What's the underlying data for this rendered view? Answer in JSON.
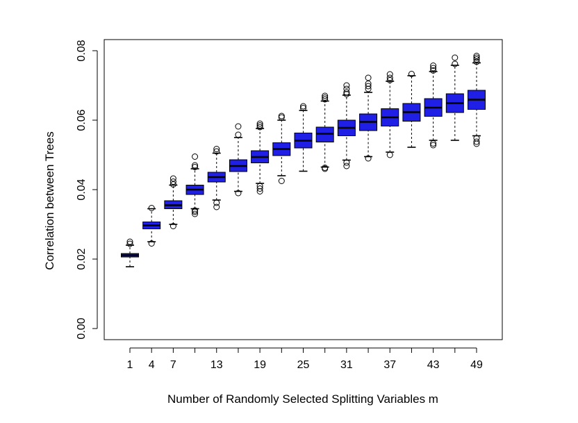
{
  "chart_data": {
    "type": "boxplot",
    "xlabel": "Number of Randomly Selected Splitting Variables m",
    "ylabel": "Correlation between Trees",
    "ylim": [
      0.0,
      0.08
    ],
    "yticks": [
      "0.00",
      "0.02",
      "0.04",
      "0.06",
      "0.08"
    ],
    "xticks": [
      "1",
      "4",
      "7",
      "13",
      "19",
      "25",
      "31",
      "37",
      "43",
      "49"
    ],
    "box_color": "#1f1fe6",
    "grid": false,
    "boxes": [
      {
        "m": 1,
        "whisker_low": 0.0178,
        "q1": 0.0206,
        "median": 0.0211,
        "q3": 0.0216,
        "whisker_high": 0.024,
        "outliers": [
          0.0244,
          0.025
        ]
      },
      {
        "m": 4,
        "whisker_low": 0.025,
        "q1": 0.0287,
        "median": 0.0297,
        "q3": 0.0307,
        "whisker_high": 0.0345,
        "outliers": [
          0.0245,
          0.0347
        ]
      },
      {
        "m": 7,
        "whisker_low": 0.03,
        "q1": 0.0345,
        "median": 0.0355,
        "q3": 0.0368,
        "whisker_high": 0.0413,
        "outliers": [
          0.0295,
          0.0415,
          0.0423,
          0.0432
        ]
      },
      {
        "m": 10,
        "whisker_low": 0.0345,
        "q1": 0.0386,
        "median": 0.04,
        "q3": 0.0413,
        "whisker_high": 0.046,
        "outliers": [
          0.033,
          0.0336,
          0.034,
          0.0465,
          0.047,
          0.0495
        ]
      },
      {
        "m": 13,
        "whisker_low": 0.037,
        "q1": 0.0422,
        "median": 0.0436,
        "q3": 0.045,
        "whisker_high": 0.0505,
        "outliers": [
          0.035,
          0.0362,
          0.051,
          0.0517
        ]
      },
      {
        "m": 16,
        "whisker_low": 0.0395,
        "q1": 0.0452,
        "median": 0.0468,
        "q3": 0.0486,
        "whisker_high": 0.055,
        "outliers": [
          0.039,
          0.0558,
          0.0582
        ]
      },
      {
        "m": 19,
        "whisker_low": 0.0418,
        "q1": 0.0477,
        "median": 0.0494,
        "q3": 0.0512,
        "whisker_high": 0.0576,
        "outliers": [
          0.0395,
          0.0403,
          0.041,
          0.058,
          0.0585,
          0.059
        ]
      },
      {
        "m": 22,
        "whisker_low": 0.044,
        "q1": 0.0498,
        "median": 0.0517,
        "q3": 0.0535,
        "whisker_high": 0.06,
        "outliers": [
          0.0425,
          0.0608,
          0.0612
        ]
      },
      {
        "m": 25,
        "whisker_low": 0.0453,
        "q1": 0.052,
        "median": 0.0541,
        "q3": 0.0563,
        "whisker_high": 0.0628,
        "outliers": [
          0.0635,
          0.064
        ]
      },
      {
        "m": 28,
        "whisker_low": 0.0465,
        "q1": 0.0537,
        "median": 0.0561,
        "q3": 0.058,
        "whisker_high": 0.0655,
        "outliers": [
          0.046,
          0.0463,
          0.066,
          0.0665,
          0.067
        ]
      },
      {
        "m": 31,
        "whisker_low": 0.0485,
        "q1": 0.0555,
        "median": 0.0578,
        "q3": 0.06,
        "whisker_high": 0.0672,
        "outliers": [
          0.0468,
          0.0478,
          0.0675,
          0.068,
          0.069,
          0.07
        ]
      },
      {
        "m": 34,
        "whisker_low": 0.0495,
        "q1": 0.057,
        "median": 0.0595,
        "q3": 0.0618,
        "whisker_high": 0.068,
        "outliers": [
          0.049,
          0.069,
          0.0698,
          0.0705,
          0.0722
        ]
      },
      {
        "m": 37,
        "whisker_low": 0.0508,
        "q1": 0.0583,
        "median": 0.0608,
        "q3": 0.0633,
        "whisker_high": 0.0712,
        "outliers": [
          0.05,
          0.0715,
          0.0722,
          0.0732
        ]
      },
      {
        "m": 40,
        "whisker_low": 0.0522,
        "q1": 0.0597,
        "median": 0.0623,
        "q3": 0.0648,
        "whisker_high": 0.0728,
        "outliers": [
          0.0733
        ]
      },
      {
        "m": 43,
        "whisker_low": 0.0542,
        "q1": 0.0611,
        "median": 0.0636,
        "q3": 0.0662,
        "whisker_high": 0.074,
        "outliers": [
          0.0528,
          0.0533,
          0.0743,
          0.075,
          0.0757
        ]
      },
      {
        "m": 46,
        "whisker_low": 0.0542,
        "q1": 0.0622,
        "median": 0.0649,
        "q3": 0.0676,
        "whisker_high": 0.0758,
        "outliers": [
          0.0762,
          0.078
        ]
      },
      {
        "m": 49,
        "whisker_low": 0.0555,
        "q1": 0.0631,
        "median": 0.0659,
        "q3": 0.0686,
        "whisker_high": 0.0765,
        "outliers": [
          0.0532,
          0.0538,
          0.0548,
          0.0768,
          0.0775,
          0.078,
          0.0785
        ]
      }
    ]
  }
}
